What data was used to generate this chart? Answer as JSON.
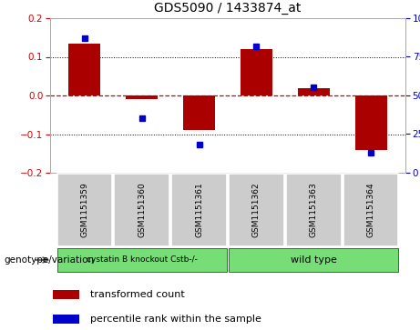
{
  "title": "GDS5090 / 1433874_at",
  "samples": [
    "GSM1151359",
    "GSM1151360",
    "GSM1151361",
    "GSM1151362",
    "GSM1151363",
    "GSM1151364"
  ],
  "transformed_count": [
    0.135,
    -0.01,
    -0.09,
    0.12,
    0.02,
    -0.14
  ],
  "percentile_rank": [
    87,
    35,
    18,
    82,
    55,
    13
  ],
  "ylim_left": [
    -0.2,
    0.2
  ],
  "ylim_right": [
    0,
    100
  ],
  "yticks_left": [
    -0.2,
    -0.1,
    0.0,
    0.1,
    0.2
  ],
  "yticks_right": [
    0,
    25,
    50,
    75,
    100
  ],
  "bar_color": "#aa0000",
  "dot_color": "#0000cc",
  "background_color": "#ffffff",
  "plot_bg": "#ffffff",
  "group1_label": "cystatin B knockout Cstb-/-",
  "group2_label": "wild type",
  "group1_color": "#77dd77",
  "group2_color": "#77dd77",
  "group1_indices": [
    0,
    1,
    2
  ],
  "group2_indices": [
    3,
    4,
    5
  ],
  "genotype_label": "genotype/variation",
  "legend_bar_label": "transformed count",
  "legend_dot_label": "percentile rank within the sample",
  "bar_width": 0.55,
  "sample_box_color": "#cccccc"
}
